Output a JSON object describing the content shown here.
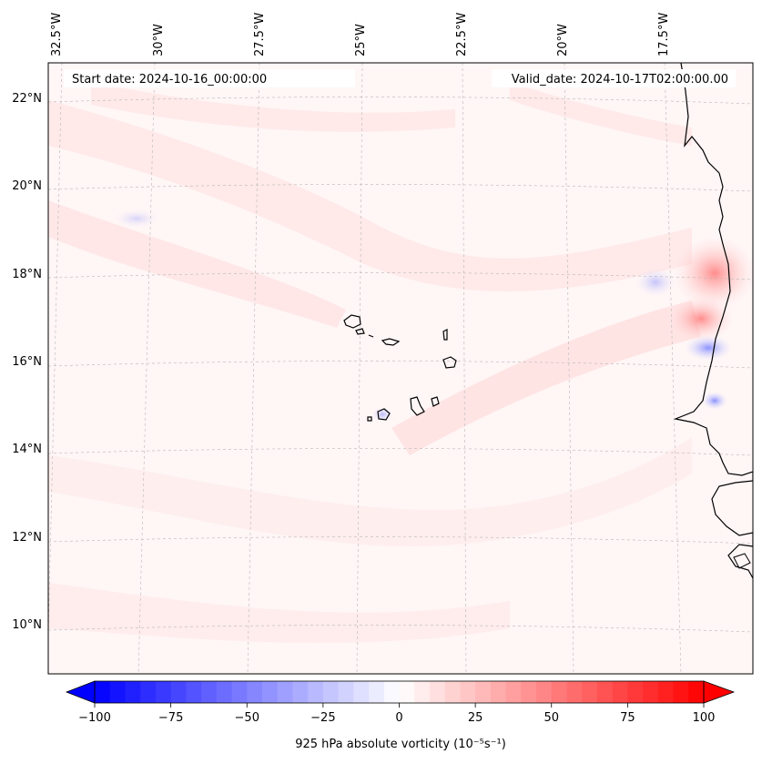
{
  "map": {
    "header": {
      "start_date": "Start date: 2024-10-16_00:00:00",
      "valid_date": "Valid_date: 2024-10-17T02:00:00.00"
    },
    "longitude_labels": [
      "32.5°W",
      "30°W",
      "27.5°W",
      "25°W",
      "22.5°W",
      "20°W",
      "17.5°W"
    ],
    "latitude_labels": [
      "22°N",
      "20°N",
      "18°N",
      "16°N",
      "14°N",
      "12°N",
      "10°N"
    ],
    "features": [
      "Cape Verde Islands",
      "West African coastline"
    ]
  },
  "colorbar": {
    "label": "925 hPa absolute vorticity (10⁻⁵s⁻¹)",
    "ticks": [
      "−100",
      "−75",
      "−50",
      "−25",
      "0",
      "25",
      "50",
      "75",
      "100"
    ],
    "min": -100,
    "max": 100,
    "extend": "both",
    "colors": {
      "negative": "#0000ff",
      "zero": "#ffffff",
      "positive": "#ff0000"
    }
  }
}
